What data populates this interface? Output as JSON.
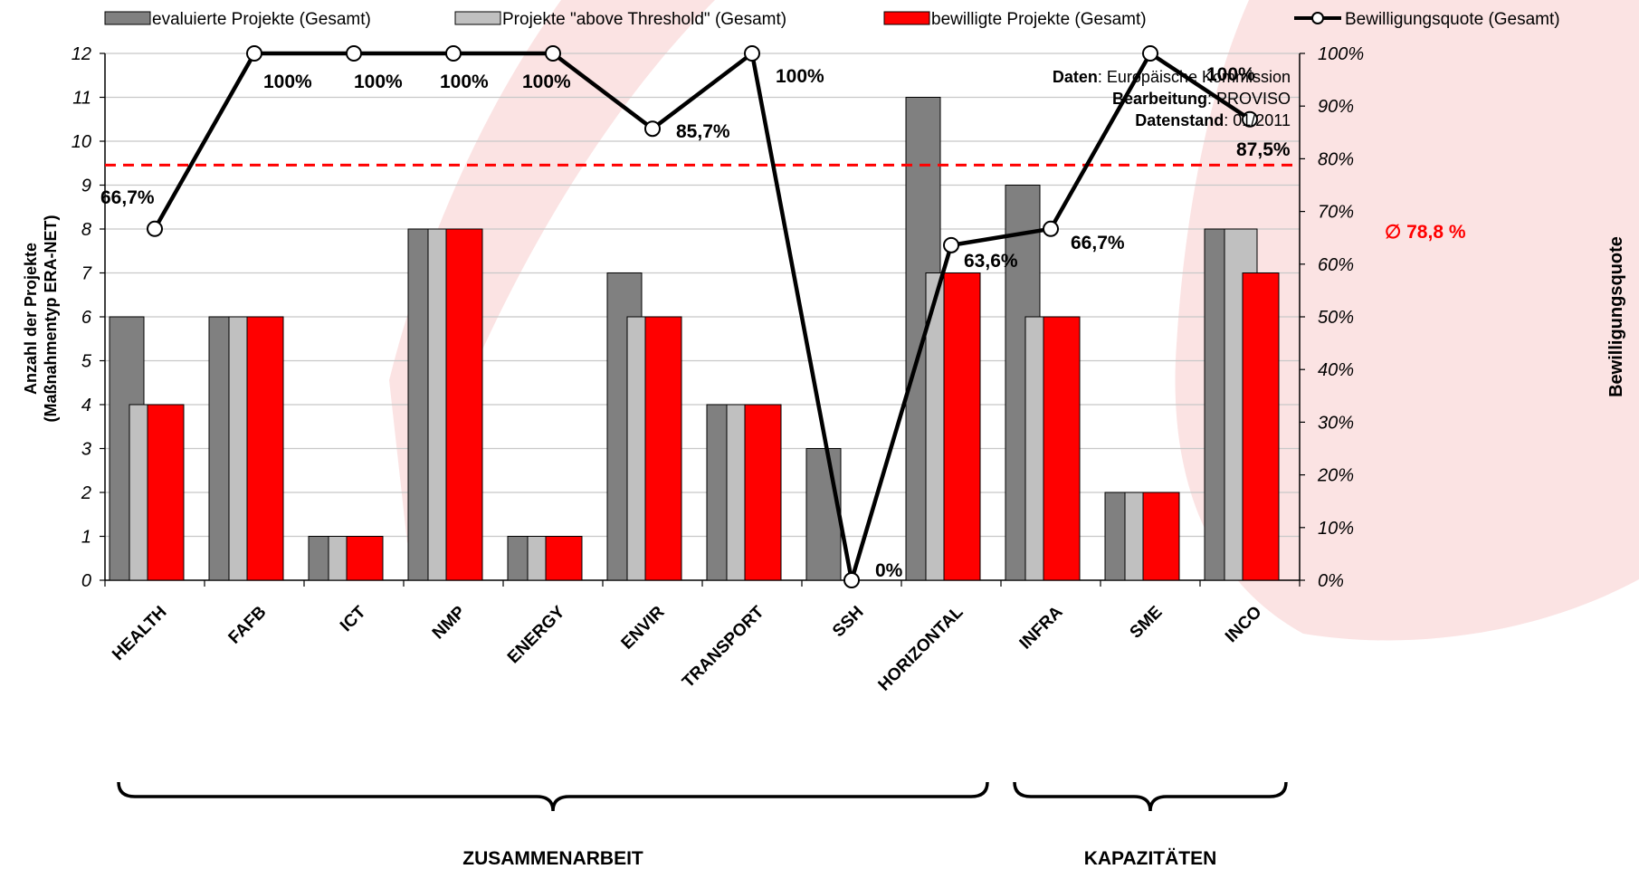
{
  "chart_data": {
    "type": "bar",
    "categories": [
      "HEALTH",
      "FAFB",
      "ICT",
      "NMP",
      "ENERGY",
      "ENVIR",
      "TRANSPORT",
      "SSH",
      "HORIZONTAL",
      "INFRA",
      "SME",
      "INCO"
    ],
    "series": [
      {
        "name": "evaluierte Projekte (Gesamt)",
        "type": "bar",
        "color": "#808080",
        "values": [
          6,
          6,
          1,
          8,
          1,
          7,
          4,
          3,
          11,
          9,
          2,
          8
        ]
      },
      {
        "name": "Projekte \"above Threshold\" (Gesamt)",
        "type": "bar",
        "color": "#c0c0c0",
        "values": [
          4,
          6,
          1,
          8,
          1,
          6,
          4,
          0,
          7,
          6,
          2,
          8
        ]
      },
      {
        "name": "bewilligte Projekte (Gesamt)",
        "type": "bar",
        "color": "#ff0000",
        "values": [
          4,
          6,
          1,
          8,
          1,
          6,
          4,
          0,
          7,
          6,
          2,
          7
        ]
      },
      {
        "name": "Bewilligungsquote (Gesamt)",
        "type": "line",
        "axis": "right",
        "color": "#000000",
        "values": [
          66.7,
          100,
          100,
          100,
          100,
          85.7,
          100,
          0,
          63.6,
          66.7,
          100,
          87.5
        ],
        "labels": [
          "66,7%",
          "100%",
          "100%",
          "100%",
          "100%",
          "85,7%",
          "100%",
          "0%",
          "63,6%",
          "66,7%",
          "100%",
          "87,5%"
        ]
      }
    ],
    "ylabel_left": [
      "Anzahl der Projekte",
      "(Maßnahmentyp ERA-NET)"
    ],
    "ylabel_right": "Bewilligungsquote",
    "ylim_left": [
      0,
      12
    ],
    "ylim_right": [
      0,
      100
    ],
    "yticks_left": [
      "0",
      "1",
      "2",
      "3",
      "4",
      "5",
      "6",
      "7",
      "8",
      "9",
      "10",
      "11",
      "12"
    ],
    "yticks_right": [
      "0%",
      "10%",
      "20%",
      "30%",
      "40%",
      "50%",
      "60%",
      "70%",
      "80%",
      "90%",
      "100%"
    ],
    "average_line": {
      "value": 78.8,
      "label": "∅ 78,8 %",
      "color": "#ff0000"
    },
    "grid": true,
    "legend_position": "top",
    "groups": [
      {
        "label": "ZUSAMMENARBEIT",
        "from": 0,
        "to": 8
      },
      {
        "label": "KAPAZITÄTEN",
        "from": 9,
        "to": 11
      }
    ],
    "source_note": [
      {
        "key": "Daten",
        "value": ": Europäische Kommission"
      },
      {
        "key": "Bearbeitung",
        "value": ": PROVISO"
      },
      {
        "key": "Datenstand",
        "value": ": 01/2011"
      }
    ]
  }
}
